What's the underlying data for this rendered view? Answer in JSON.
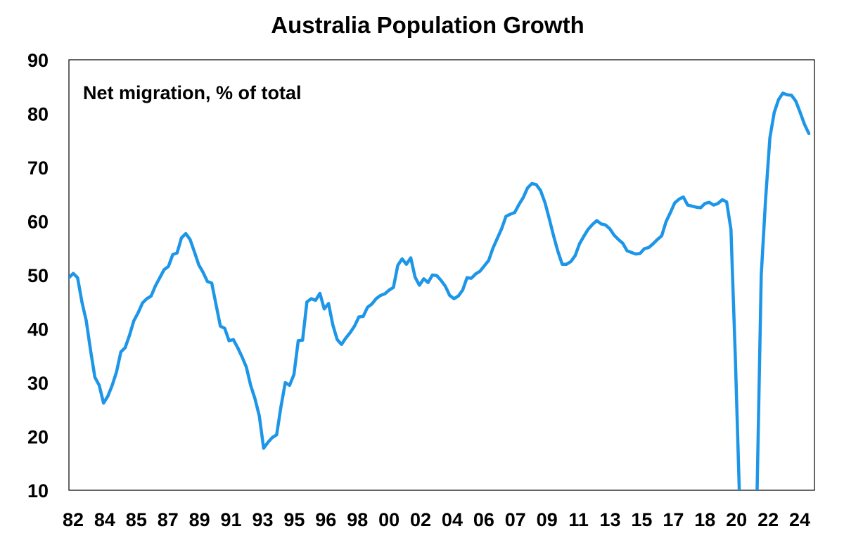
{
  "chart_data": {
    "type": "line",
    "title": "Australia Population Growth",
    "annotation": "Net migration, % of total",
    "xlabel": "",
    "ylabel": "",
    "ylim": [
      10,
      90
    ],
    "yticks": [
      10,
      20,
      30,
      40,
      50,
      60,
      70,
      80,
      90
    ],
    "xticks": [
      "82",
      "84",
      "85",
      "87",
      "89",
      "91",
      "93",
      "95",
      "96",
      "98",
      "00",
      "02",
      "04",
      "06",
      "07",
      "09",
      "11",
      "13",
      "15",
      "17",
      "18",
      "20",
      "22",
      "24"
    ],
    "grid": false,
    "legend": "none",
    "line_color": "#1E96E8",
    "series": [
      {
        "values": [
          49.5,
          50.3,
          49.5,
          45.0,
          41.5,
          36.0,
          31.0,
          29.5,
          26.2,
          27.5,
          29.5,
          32.0,
          35.7,
          36.5,
          38.8,
          41.5,
          43.0,
          44.8,
          45.6,
          46.1,
          48.0,
          49.5,
          51.0,
          51.6,
          53.8,
          54.1,
          56.9,
          57.7,
          56.6,
          54.3,
          51.9,
          50.5,
          48.8,
          48.5,
          44.5,
          40.5,
          40.1,
          37.8,
          38.0,
          36.5,
          34.8,
          32.9,
          29.5,
          27.0,
          23.8,
          17.8,
          18.9,
          19.8,
          20.3,
          25.5,
          30.0,
          29.5,
          31.5,
          37.8,
          37.9,
          45.0,
          45.6,
          45.3,
          46.6,
          43.7,
          44.7,
          40.7,
          38.0,
          37.1,
          38.3,
          39.3,
          40.5,
          42.2,
          42.3,
          44.0,
          44.6,
          45.6,
          46.2,
          46.5,
          47.2,
          47.7,
          51.8,
          53.0,
          52.0,
          53.2,
          49.6,
          48.1,
          49.3,
          48.6,
          50.0,
          49.9,
          49.0,
          47.9,
          46.2,
          45.6,
          46.1,
          47.2,
          49.5,
          49.4,
          50.2,
          50.7,
          51.7,
          52.7,
          55.0,
          56.8,
          58.6,
          60.9,
          61.3,
          61.6,
          63.1,
          64.4,
          66.2,
          67.0,
          66.8,
          65.7,
          63.5,
          60.5,
          57.3,
          54.4,
          52.0,
          52.0,
          52.5,
          53.6,
          55.8,
          57.2,
          58.5,
          59.4,
          60.1,
          59.5,
          59.3,
          58.6,
          57.4,
          56.6,
          55.9,
          54.5,
          54.2,
          53.9,
          54.0,
          54.9,
          55.1,
          55.8,
          56.6,
          57.3,
          59.9,
          61.6,
          63.4,
          64.1,
          64.5,
          63.0,
          62.8,
          62.6,
          62.5,
          63.3,
          63.5,
          63.0,
          63.3,
          64.0,
          63.6,
          58.5,
          35.0,
          8.0,
          8.0,
          8.0,
          8.0,
          8.0,
          50.0,
          64.0,
          75.5,
          80.2,
          82.6,
          83.8,
          83.5,
          83.4,
          82.3,
          80.2,
          78.0,
          76.3
        ]
      }
    ]
  }
}
